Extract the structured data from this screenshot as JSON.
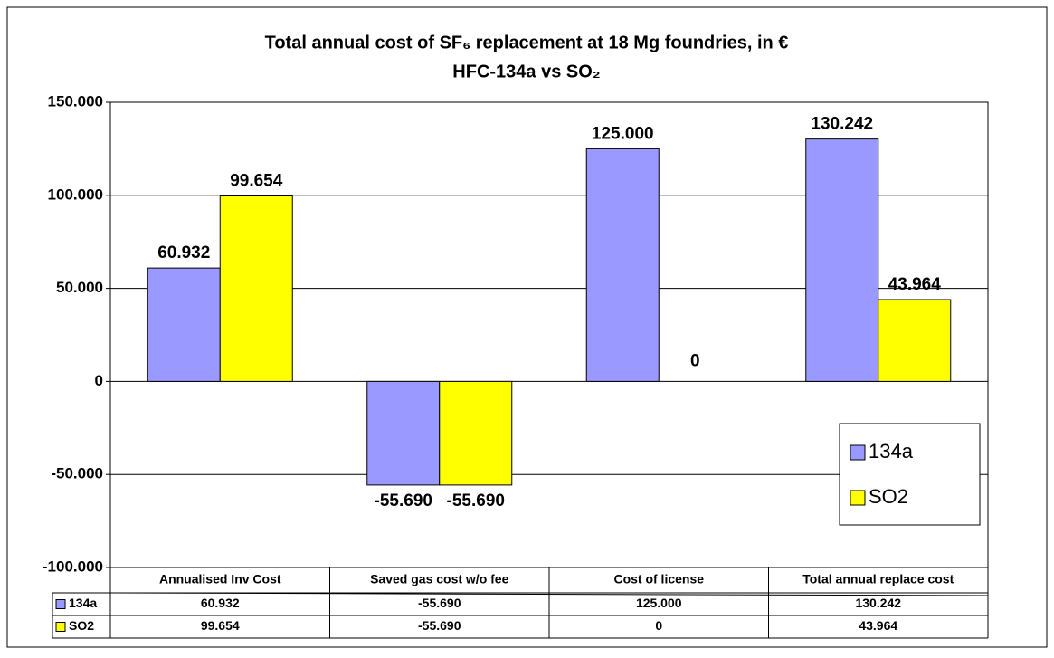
{
  "chart_data": {
    "type": "bar",
    "title": "Total annual cost of SF₆ replacement at 18 Mg foundries, in €",
    "subtitle": "HFC-134a vs SO₂",
    "categories": [
      "Annualised Inv Cost",
      "Saved gas cost w/o fee",
      "Cost of license",
      "Total annual replace cost"
    ],
    "series": [
      {
        "name": "134a",
        "color": "#9999ff",
        "values": [
          60932,
          -55690,
          125000,
          130242
        ],
        "value_labels": [
          "60.932",
          "-55.690",
          "125.000",
          "130.242"
        ]
      },
      {
        "name": "SO2",
        "color": "#ffff00",
        "values": [
          99654,
          -55690,
          0,
          43964
        ],
        "value_labels": [
          "99.654",
          "-55.690",
          "0",
          "43.964"
        ]
      }
    ],
    "ylim": [
      -100000,
      150000
    ],
    "yticks": [
      {
        "value": -100000,
        "label": "-100.000"
      },
      {
        "value": -50000,
        "label": "-50.000"
      },
      0,
      {
        "value": 50000,
        "label": "50.000"
      },
      {
        "value": 100000,
        "label": "100.000"
      },
      {
        "value": 150000,
        "label": "150.000"
      }
    ],
    "grid": true,
    "legend": "right",
    "data_table": true
  }
}
